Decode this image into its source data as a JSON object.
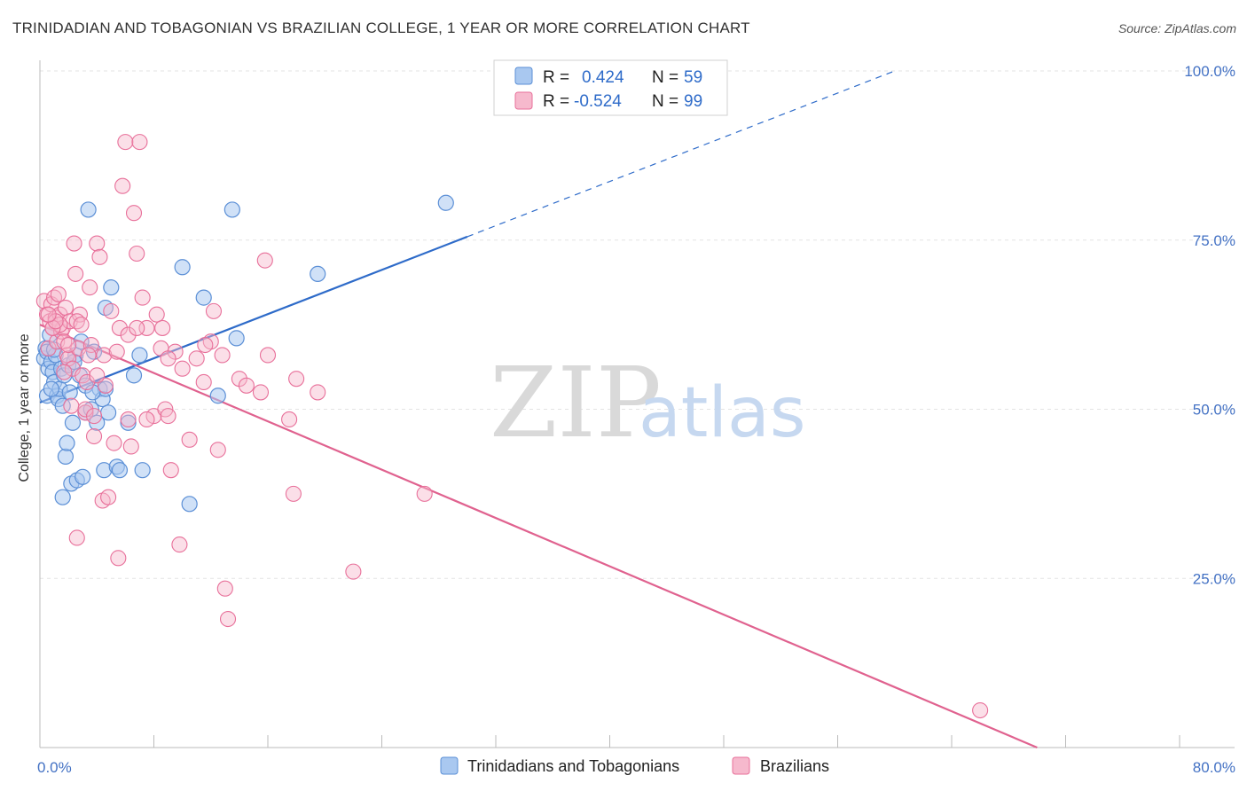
{
  "title": "TRINIDADIAN AND TOBAGONIAN VS BRAZILIAN COLLEGE, 1 YEAR OR MORE CORRELATION CHART",
  "source": "Source: ZipAtlas.com",
  "watermark": {
    "zip": "ZIP",
    "atlas": "atlas"
  },
  "colors": {
    "blue": "#5b8fd6",
    "blue_fill": "#a9c8f0",
    "pink": "#e8709a",
    "pink_fill": "#f6b9cd",
    "blue_line": "#2e6bc9",
    "pink_line": "#e0628f"
  },
  "legend": {
    "rows": [
      {
        "r_label": "R =",
        "r_value": "0.424",
        "n_label": "N =",
        "n_value": "59"
      },
      {
        "r_label": "R =",
        "r_value": "-0.524",
        "n_label": "N =",
        "n_value": "99"
      }
    ]
  },
  "chart_data": {
    "type": "scatter",
    "ylabel": "College, 1 year or more",
    "xlim": [
      0,
      80
    ],
    "ylim": [
      0,
      100
    ],
    "x_tick_labels": [
      "0.0%",
      "80.0%"
    ],
    "y_tick_labels": [
      {
        "value": 25,
        "label": "25.0%"
      },
      {
        "value": 50,
        "label": "50.0%"
      },
      {
        "value": 75,
        "label": "75.0%"
      },
      {
        "value": 100,
        "label": "100.0%"
      }
    ],
    "series": [
      {
        "name": "Trinidadians and Tobagonians",
        "color": "#5b8fd6",
        "trend": {
          "x1": 0,
          "y1": 51,
          "x2": 30,
          "y2": 75.5,
          "dashed_to_x": 60,
          "dashed_to_y": 100
        },
        "points": [
          [
            0.3,
            57.5
          ],
          [
            0.4,
            59
          ],
          [
            0.5,
            58.5
          ],
          [
            0.5,
            52
          ],
          [
            0.6,
            56
          ],
          [
            0.7,
            61
          ],
          [
            0.8,
            57
          ],
          [
            0.9,
            55.5
          ],
          [
            1.0,
            54
          ],
          [
            1.1,
            58
          ],
          [
            1.2,
            52
          ],
          [
            1.3,
            51.5
          ],
          [
            1.4,
            53
          ],
          [
            1.5,
            56
          ],
          [
            1.6,
            50.5
          ],
          [
            1.7,
            55
          ],
          [
            1.8,
            43
          ],
          [
            1.9,
            45
          ],
          [
            2.0,
            56.5
          ],
          [
            2.1,
            52.5
          ],
          [
            2.2,
            39
          ],
          [
            2.3,
            48
          ],
          [
            2.5,
            58
          ],
          [
            2.6,
            39.5
          ],
          [
            2.8,
            55
          ],
          [
            3.0,
            40
          ],
          [
            3.2,
            49.5
          ],
          [
            3.4,
            79.5
          ],
          [
            3.6,
            50
          ],
          [
            3.8,
            58.5
          ],
          [
            4.0,
            48
          ],
          [
            4.2,
            53
          ],
          [
            4.4,
            51.5
          ],
          [
            4.5,
            41
          ],
          [
            4.6,
            65
          ],
          [
            4.8,
            49.5
          ],
          [
            5.0,
            68
          ],
          [
            5.4,
            41.5
          ],
          [
            5.6,
            41
          ],
          [
            6.2,
            48
          ],
          [
            6.6,
            55
          ],
          [
            7.0,
            58
          ],
          [
            7.2,
            41
          ],
          [
            10.0,
            71
          ],
          [
            10.5,
            36
          ],
          [
            11.5,
            66.5
          ],
          [
            12.5,
            52
          ],
          [
            13.5,
            79.5
          ],
          [
            13.8,
            60.5
          ],
          [
            19.5,
            70
          ],
          [
            28.5,
            80.5
          ],
          [
            2.4,
            57
          ],
          [
            1.0,
            58.8
          ],
          [
            3.2,
            53.5
          ],
          [
            0.8,
            53
          ],
          [
            1.6,
            37
          ],
          [
            4.6,
            53
          ],
          [
            2.9,
            60
          ],
          [
            3.7,
            52.5
          ]
        ]
      },
      {
        "name": "Brazilians",
        "color": "#e8709a",
        "trend": {
          "x1": 0,
          "y1": 62.5,
          "x2": 70,
          "y2": 0
        },
        "points": [
          [
            0.3,
            66
          ],
          [
            0.5,
            64
          ],
          [
            0.6,
            59
          ],
          [
            0.7,
            63
          ],
          [
            0.8,
            65.5
          ],
          [
            0.9,
            62
          ],
          [
            1.0,
            66.5
          ],
          [
            1.1,
            63.5
          ],
          [
            1.2,
            60
          ],
          [
            1.3,
            67
          ],
          [
            1.4,
            64
          ],
          [
            1.5,
            61.5
          ],
          [
            1.6,
            62
          ],
          [
            1.7,
            60
          ],
          [
            1.8,
            65
          ],
          [
            1.9,
            58
          ],
          [
            2.0,
            57.5
          ],
          [
            2.1,
            63
          ],
          [
            2.2,
            50.5
          ],
          [
            2.3,
            56
          ],
          [
            2.4,
            74.5
          ],
          [
            2.5,
            70
          ],
          [
            2.6,
            31
          ],
          [
            2.7,
            59
          ],
          [
            2.8,
            64
          ],
          [
            3.0,
            55
          ],
          [
            3.2,
            49.5
          ],
          [
            3.3,
            54
          ],
          [
            3.5,
            68
          ],
          [
            3.6,
            59.5
          ],
          [
            3.8,
            46
          ],
          [
            4.0,
            74.5
          ],
          [
            4.2,
            72.5
          ],
          [
            4.4,
            36.5
          ],
          [
            4.5,
            58
          ],
          [
            4.6,
            53.5
          ],
          [
            4.8,
            37
          ],
          [
            5.0,
            64.5
          ],
          [
            5.2,
            45
          ],
          [
            5.5,
            28
          ],
          [
            5.6,
            62
          ],
          [
            5.8,
            83
          ],
          [
            6.0,
            89.5
          ],
          [
            6.2,
            48.5
          ],
          [
            6.4,
            44.5
          ],
          [
            6.6,
            79
          ],
          [
            6.8,
            73
          ],
          [
            7.0,
            89.5
          ],
          [
            7.2,
            66.5
          ],
          [
            7.5,
            62
          ],
          [
            8.0,
            49
          ],
          [
            8.2,
            64
          ],
          [
            8.5,
            59
          ],
          [
            8.8,
            50
          ],
          [
            9.0,
            49
          ],
          [
            9.2,
            41
          ],
          [
            9.5,
            58.5
          ],
          [
            9.8,
            30
          ],
          [
            10.0,
            56
          ],
          [
            10.5,
            45.5
          ],
          [
            11.0,
            57.5
          ],
          [
            11.5,
            54
          ],
          [
            12.0,
            60
          ],
          [
            12.2,
            64.5
          ],
          [
            12.5,
            44
          ],
          [
            13.0,
            23.5
          ],
          [
            13.2,
            19
          ],
          [
            14.0,
            54.5
          ],
          [
            14.5,
            53.5
          ],
          [
            15.5,
            52.5
          ],
          [
            15.8,
            72
          ],
          [
            16.0,
            58
          ],
          [
            17.5,
            48.5
          ],
          [
            17.8,
            37.5
          ],
          [
            18.0,
            54.5
          ],
          [
            19.5,
            52.5
          ],
          [
            22.0,
            26
          ],
          [
            27.0,
            37.5
          ],
          [
            66.0,
            5.5
          ],
          [
            3.2,
            50
          ],
          [
            1.4,
            62.5
          ],
          [
            2.6,
            63
          ],
          [
            0.9,
            62
          ],
          [
            1.1,
            63
          ],
          [
            3.8,
            49
          ],
          [
            5.4,
            58.5
          ],
          [
            6.2,
            61
          ],
          [
            7.5,
            48.5
          ],
          [
            9.0,
            57.5
          ],
          [
            2.0,
            59.5
          ],
          [
            4.0,
            55
          ],
          [
            1.7,
            55.5
          ],
          [
            2.9,
            62.5
          ],
          [
            6.8,
            62
          ],
          [
            11.6,
            59.5
          ],
          [
            0.6,
            64
          ],
          [
            3.4,
            58
          ],
          [
            8.6,
            62
          ],
          [
            12.8,
            58
          ]
        ]
      }
    ],
    "legend_position": "top-center",
    "grid": true
  }
}
